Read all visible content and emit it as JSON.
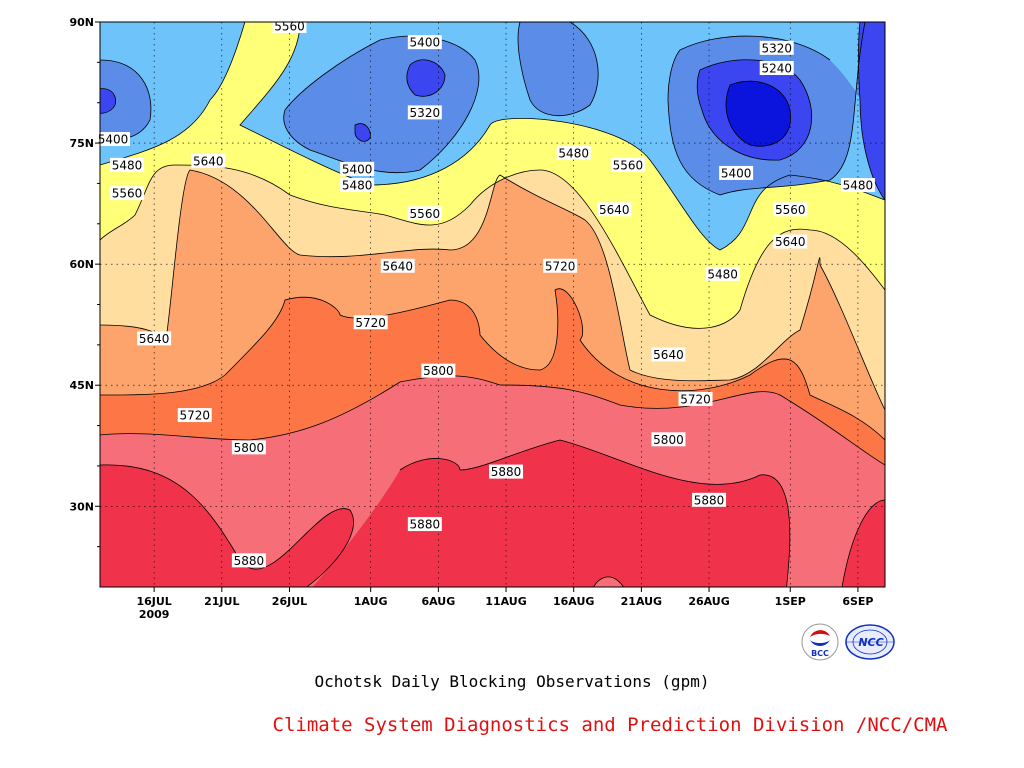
{
  "chart_data": {
    "type": "heatmap",
    "title": "Ochotsk Daily Blocking Observations (gpm)",
    "xlabel": "",
    "ylabel": "",
    "x_ticks": [
      "16JUL",
      "21JUL",
      "26JUL",
      "1AUG",
      "6AUG",
      "11AUG",
      "16AUG",
      "21AUG",
      "26AUG",
      "1SEP",
      "6SEP"
    ],
    "x_year_label": "2009",
    "y_ticks": [
      "90N",
      "75N",
      "60N",
      "45N",
      "30N"
    ],
    "ylim": [
      20,
      90
    ],
    "xlim": [
      "2009-07-12",
      "2009-09-08"
    ],
    "grid": true,
    "levels": [
      5240,
      5320,
      5400,
      5480,
      5560,
      5640,
      5720,
      5800,
      5880
    ],
    "fill_colors": [
      "#0b14dc",
      "#3c46f0",
      "#5a8ce8",
      "#6ec3fa",
      "#ffff78",
      "#ffdea0",
      "#fda36c",
      "#fc7745",
      "#f56e78",
      "#f0334b"
    ],
    "contour_labels": [
      {
        "value": "5560",
        "date": "2009-07-26",
        "lat": 89.5
      },
      {
        "value": "5400",
        "date": "2009-08-05",
        "lat": 87.5
      },
      {
        "value": "5320",
        "date": "2009-08-05",
        "lat": 78.8
      },
      {
        "value": "5320",
        "date": "2009-08-31",
        "lat": 86.8
      },
      {
        "value": "5240",
        "date": "2009-08-31",
        "lat": 84.3
      },
      {
        "value": "5400",
        "date": "2009-07-12",
        "lat": 75.5
      },
      {
        "value": "5480",
        "date": "2009-07-14",
        "lat": 72.3
      },
      {
        "value": "5640",
        "date": "2009-07-20",
        "lat": 72.8
      },
      {
        "value": "5560",
        "date": "2009-07-14",
        "lat": 68.8
      },
      {
        "value": "5400",
        "date": "2009-07-31",
        "lat": 71.8
      },
      {
        "value": "5480",
        "date": "2009-07-31",
        "lat": 69.8
      },
      {
        "value": "5560",
        "date": "2009-08-05",
        "lat": 66.3
      },
      {
        "value": "5480",
        "date": "2009-08-16",
        "lat": 73.8
      },
      {
        "value": "5560",
        "date": "2009-08-20",
        "lat": 72.3
      },
      {
        "value": "5640",
        "date": "2009-08-19",
        "lat": 66.8
      },
      {
        "value": "5400",
        "date": "2009-08-28",
        "lat": 71.3
      },
      {
        "value": "5480",
        "date": "2009-09-06",
        "lat": 69.8
      },
      {
        "value": "5560",
        "date": "2009-09-01",
        "lat": 66.8
      },
      {
        "value": "5640",
        "date": "2009-09-01",
        "lat": 62.8
      },
      {
        "value": "5640",
        "date": "2009-08-03",
        "lat": 59.8
      },
      {
        "value": "5720",
        "date": "2009-08-15",
        "lat": 59.8
      },
      {
        "value": "5480",
        "date": "2009-08-27",
        "lat": 58.8
      },
      {
        "value": "5640",
        "date": "2009-07-16",
        "lat": 50.8
      },
      {
        "value": "5720",
        "date": "2009-08-01",
        "lat": 52.8
      },
      {
        "value": "5640",
        "date": "2009-08-23",
        "lat": 48.8
      },
      {
        "value": "5800",
        "date": "2009-08-06",
        "lat": 46.8
      },
      {
        "value": "5720",
        "date": "2009-07-19",
        "lat": 41.3
      },
      {
        "value": "5720",
        "date": "2009-08-25",
        "lat": 43.3
      },
      {
        "value": "5800",
        "date": "2009-07-23",
        "lat": 37.3
      },
      {
        "value": "5800",
        "date": "2009-08-23",
        "lat": 38.3
      },
      {
        "value": "5880",
        "date": "2009-08-11",
        "lat": 34.3
      },
      {
        "value": "5880",
        "date": "2009-08-26",
        "lat": 30.8
      },
      {
        "value": "5880",
        "date": "2009-08-05",
        "lat": 27.8
      },
      {
        "value": "5880",
        "date": "2009-07-23",
        "lat": 23.3
      }
    ]
  },
  "caption": "Ochotsk Daily Blocking Observations (gpm)",
  "credit": "Climate System Diagnostics and Prediction Division /NCC/CMA",
  "logos": [
    {
      "icon": "bcc-logo",
      "text": "BCC"
    },
    {
      "icon": "ncc-logo",
      "text": "NCC"
    }
  ]
}
